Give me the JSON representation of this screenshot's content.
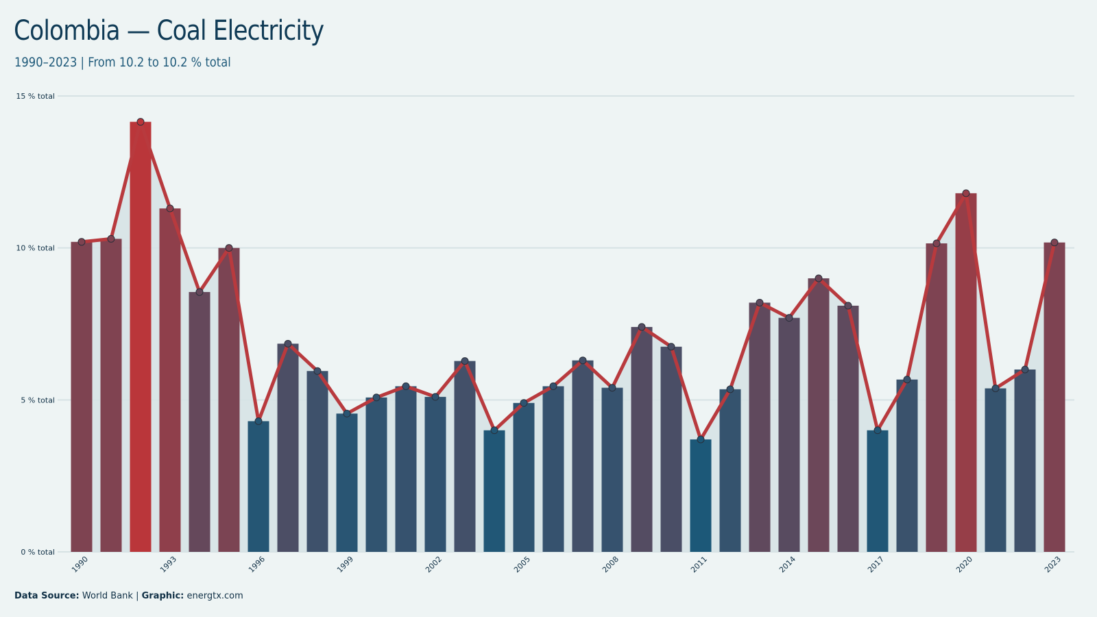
{
  "header": {
    "title": "Colombia — Coal Electricity",
    "subtitle": "1990–2023 | From 10.2 to 10.2 % total"
  },
  "footer": {
    "source_label": "Data Source:",
    "source_value": " World Bank | ",
    "graphic_label": "Graphic:",
    "graphic_value": " energtx.com"
  },
  "colors": {
    "background": "#eef4f4",
    "line": "#b83a3e",
    "low_bar": "#1c5878",
    "high_bar": "#ba363a",
    "gridline": "#d6e2e4",
    "area_fill": "#d6e3e5"
  },
  "chart_data": {
    "type": "bar",
    "x": [
      1990,
      1991,
      1992,
      1993,
      1994,
      1995,
      1996,
      1997,
      1998,
      1999,
      2000,
      2001,
      2002,
      2003,
      2004,
      2005,
      2006,
      2007,
      2008,
      2009,
      2010,
      2011,
      2012,
      2013,
      2014,
      2015,
      2016,
      2017,
      2018,
      2019,
      2020,
      2021,
      2022,
      2023
    ],
    "values": [
      10.2,
      10.3,
      14.15,
      11.3,
      8.55,
      10.0,
      4.3,
      6.85,
      5.95,
      4.55,
      5.08,
      5.45,
      5.1,
      6.28,
      4.0,
      4.9,
      5.45,
      6.3,
      5.4,
      7.4,
      6.75,
      3.7,
      5.35,
      8.2,
      7.7,
      9.0,
      8.1,
      4.0,
      5.67,
      10.15,
      11.8,
      5.38,
      6.0,
      10.18
    ],
    "series": [
      {
        "values": [
          10.2,
          10.3,
          14.15,
          11.3,
          8.55,
          10.0,
          4.3,
          6.85,
          5.95,
          4.55,
          5.08,
          5.45,
          5.1,
          6.28,
          4.0,
          4.9,
          5.45,
          6.3,
          5.4,
          7.4,
          6.75,
          3.7,
          5.35,
          8.2,
          7.7,
          9.0,
          8.1,
          4.0,
          5.67,
          10.15,
          11.8,
          5.38,
          6.0,
          10.18
        ]
      }
    ],
    "ylim": [
      0,
      15
    ],
    "y_ticks": [
      0,
      5,
      10,
      15
    ],
    "y_tick_labels": [
      "0 % total",
      "5 % total",
      "10 % total",
      "15 % total"
    ],
    "x_tick_labels": [
      "1990",
      "1993",
      "1996",
      "1999",
      "2002",
      "2005",
      "2008",
      "2011",
      "2014",
      "2017",
      "2020",
      "2023"
    ],
    "grid": true,
    "legend": "none",
    "overlay": "line with markers and shaded area"
  }
}
